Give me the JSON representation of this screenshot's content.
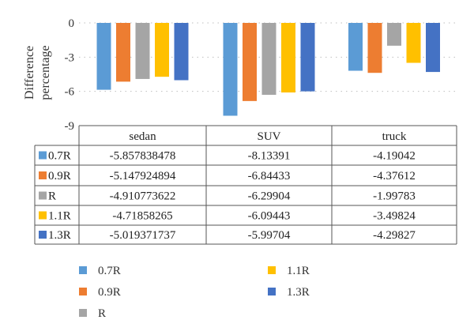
{
  "chart_data": {
    "type": "bar",
    "ylabel": "Difference percentage",
    "ylim": [
      -9,
      0
    ],
    "yticks": [
      "0",
      "-3",
      "-6",
      "-9"
    ],
    "categories": [
      "sedan",
      "SUV",
      "truck"
    ],
    "series": [
      {
        "name": "0.7R",
        "color": "#5b9bd5",
        "values": [
          "-5.857838478",
          "-8.13391",
          "-4.19042"
        ]
      },
      {
        "name": "0.9R",
        "color": "#ed7d31",
        "values": [
          "-5.147924894",
          "-6.84433",
          "-4.37612"
        ]
      },
      {
        "name": "R",
        "color": "#a5a5a5",
        "values": [
          "-4.910773622",
          "-6.29904",
          "-1.99783"
        ]
      },
      {
        "name": "1.1R",
        "color": "#ffc000",
        "values": [
          "-4.71858265",
          "-6.09443",
          "-3.49824"
        ]
      },
      {
        "name": "1.3R",
        "color": "#4472c4",
        "values": [
          "-5.019371737",
          "-5.99704",
          "-4.29827"
        ]
      }
    ],
    "grid": "dotted horizontal",
    "legend_position": "bottom",
    "has_data_table": true
  }
}
